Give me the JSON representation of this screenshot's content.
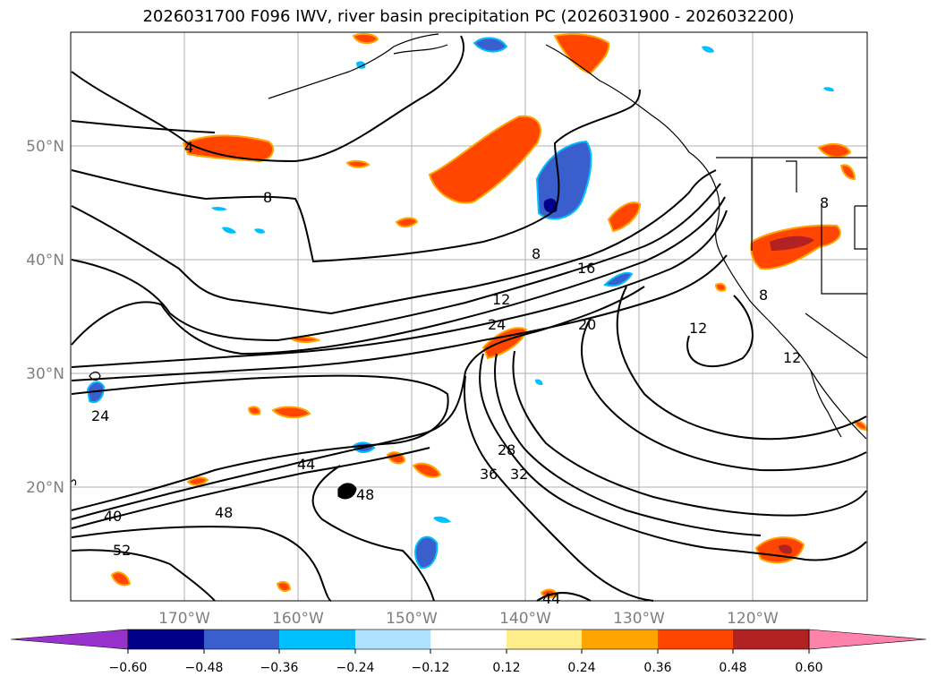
{
  "title": "2026031700 F096 IWV, river basin precipitation PC (2026031900 - 2026032200)",
  "map": {
    "lat_labels": [
      "50°N",
      "40°N",
      "30°N",
      "20°N"
    ],
    "lon_labels": [
      "170°W",
      "160°W",
      "150°W",
      "140°W",
      "130°W",
      "120°W"
    ],
    "contour_labels": [
      "4",
      "8",
      "8",
      "12",
      "16",
      "24",
      "20",
      "12",
      "12",
      "8",
      "8",
      "24",
      "28",
      "32",
      "36",
      "44",
      "48",
      "48",
      "40",
      "52",
      "44"
    ],
    "contour_color": "#000000",
    "grid_color": "#b0b0b0"
  },
  "colorbar": {
    "tick_labels": [
      "−0.60",
      "−0.48",
      "−0.36",
      "−0.24",
      "−0.12",
      "0.12",
      "0.24",
      "0.36",
      "0.48",
      "0.60"
    ],
    "colors": [
      "#9932cc",
      "#00008b",
      "#3a5fcd",
      "#00bfff",
      "#b0e2ff",
      "#ffffff",
      "#ffec8b",
      "#ffa500",
      "#ff4500",
      "#b22222",
      "#ff82ab"
    ]
  }
}
